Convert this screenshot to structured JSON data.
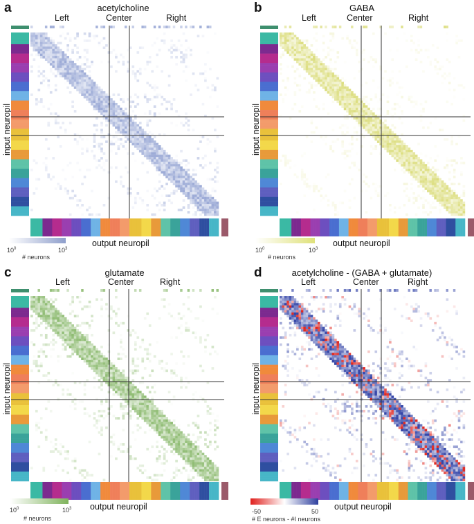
{
  "chart_data": [
    {
      "type": "heatmap",
      "panel": "a",
      "title": "acetylcholine",
      "sections": [
        "Left",
        "Center",
        "Right"
      ],
      "xlabel": "output neuropil",
      "ylabel": "input neuropil",
      "colorbar": {
        "min_label": "10",
        "min_exp": "0",
        "max_label": "10",
        "max_exp": "3",
        "caption": "# neurons",
        "scale": "log",
        "low_color": "#ffffff",
        "high_color": "#8f9fcc"
      },
      "cell_color": "#8a9bcf",
      "pattern": "diag_offdiag"
    },
    {
      "type": "heatmap",
      "panel": "b",
      "title": "GABA",
      "sections": [
        "Left",
        "Center",
        "Right"
      ],
      "xlabel": "output neuropil",
      "ylabel": "input neuropil",
      "colorbar": {
        "min_label": "10",
        "min_exp": "0",
        "max_label": "10",
        "max_exp": "3",
        "caption": "# neurons",
        "scale": "log",
        "low_color": "#ffffff",
        "high_color": "#dfe17a"
      },
      "cell_color": "#d6d86a",
      "pattern": "diag"
    },
    {
      "type": "heatmap",
      "panel": "c",
      "title": "glutamate",
      "sections": [
        "Left",
        "Center",
        "Right"
      ],
      "xlabel": "output neuropil",
      "ylabel": "input neuropil",
      "colorbar": {
        "min_label": "10",
        "min_exp": "0",
        "max_label": "10",
        "max_exp": "3",
        "caption": "# neurons",
        "scale": "log",
        "low_color": "#ffffff",
        "high_color": "#7fb35c"
      },
      "cell_color": "#7bb05a",
      "pattern": "diag_offdiag"
    },
    {
      "type": "heatmap",
      "panel": "d",
      "title": "acetylcholine - (GABA + glutamate)",
      "sections": [
        "Left",
        "Center",
        "Right"
      ],
      "xlabel": "output neuropil",
      "ylabel": "input neuropil",
      "colorbar": {
        "min_label": "-50",
        "max_label": "50",
        "caption": "# E neurons - #I neurons",
        "scale": "linear",
        "low_color": "#e0201d",
        "high_color": "#2e3f9e"
      },
      "cell_color": "#3445a8",
      "neg_color": "#e02a24",
      "pattern": "diverging"
    }
  ],
  "neuropil_colors": [
    "#3bb9a4",
    "#7c2a8f",
    "#b52c8e",
    "#9a3fb0",
    "#6d4fbf",
    "#4a6ed0",
    "#6fb3e6",
    "#f08a3c",
    "#ef7f5a",
    "#f39b6b",
    "#e9c13b",
    "#f3d84a",
    "#e89a3a",
    "#5fc3a8",
    "#3aa39a",
    "#4f88d6",
    "#5f5fbf",
    "#2f4fa0",
    "#47b6c7"
  ]
}
